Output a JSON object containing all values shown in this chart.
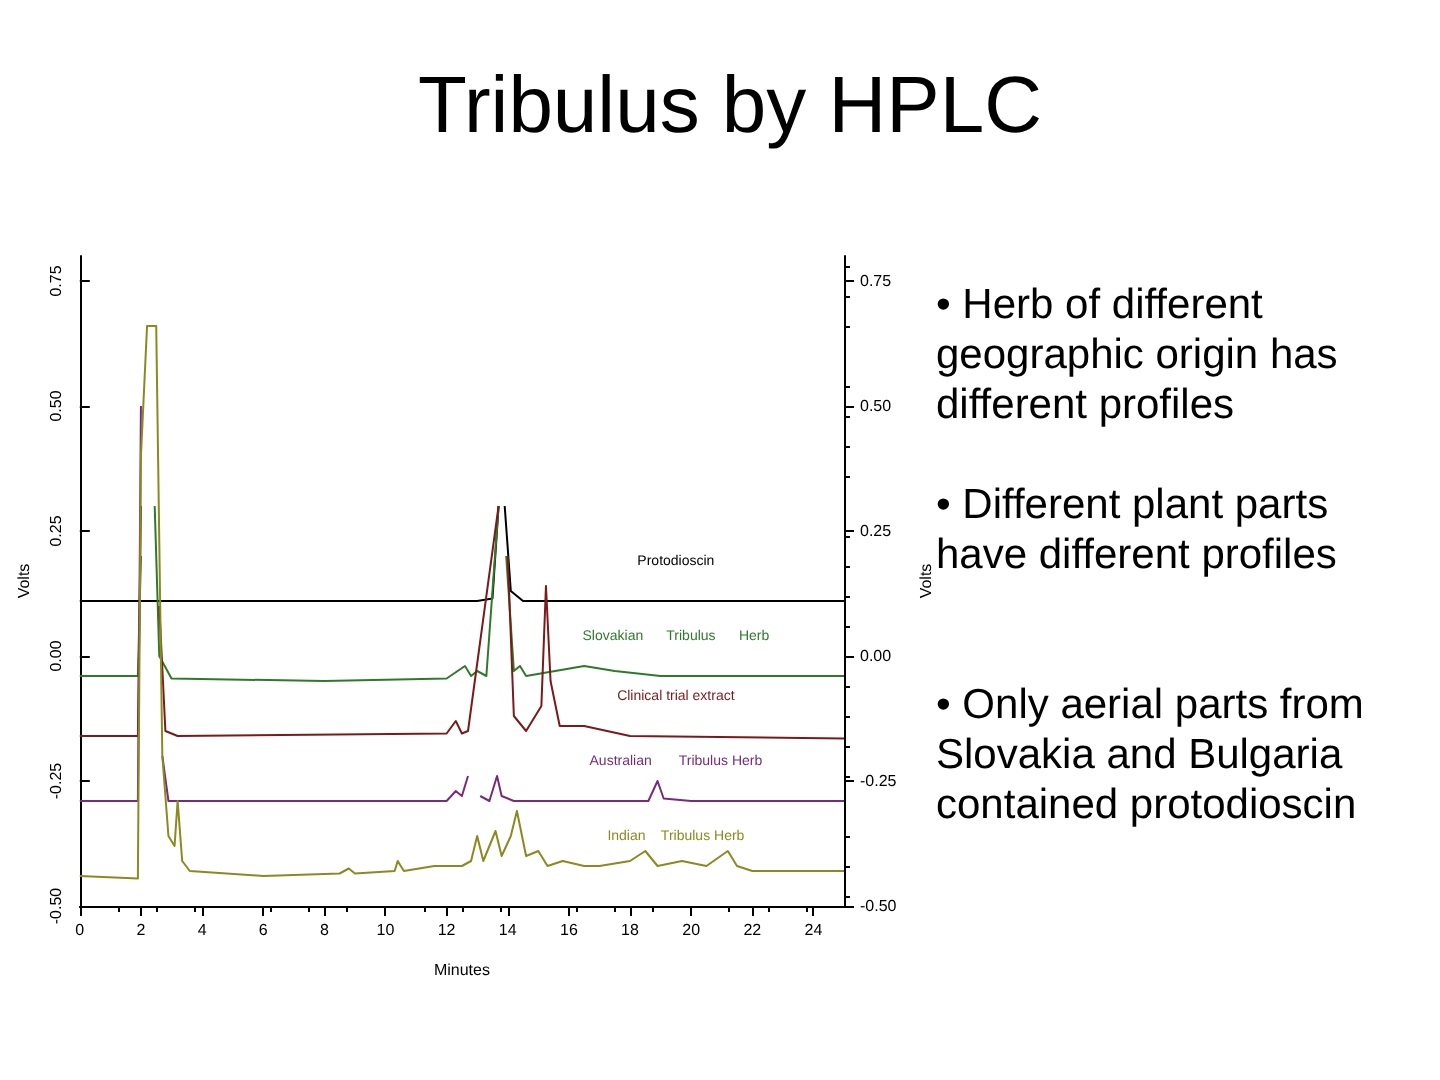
{
  "chart_data": {
    "type": "line",
    "title": "Tribulus by HPLC",
    "xlabel": "Minutes",
    "ylabel": "Volts",
    "y2label": "Volts",
    "xlim": [
      0,
      25
    ],
    "xticks": [
      0,
      2,
      4,
      6,
      8,
      10,
      12,
      14,
      16,
      18,
      20,
      22,
      24
    ],
    "ylim": [
      -0.5,
      0.8
    ],
    "yticks": [
      {
        "value": -0.5,
        "label": "-0.50"
      },
      {
        "value": -0.25,
        "label": "-0.25"
      },
      {
        "value": 0,
        "label": "0.00"
      },
      {
        "value": 0.25,
        "label": "0.25"
      },
      {
        "value": 0.5,
        "label": "0.50"
      },
      {
        "value": 0.75,
        "label": "0.75"
      }
    ],
    "y2lim": [
      -0.5,
      0.8
    ],
    "y2ticks": [
      {
        "value": -0.5,
        "label": "-0.50"
      },
      {
        "value": -0.25,
        "label": "-0.25"
      },
      {
        "value": 0,
        "label": "0.00"
      },
      {
        "value": 0.25,
        "label": "0.25"
      },
      {
        "value": 0.5,
        "label": "0.50"
      },
      {
        "value": 0.75,
        "label": "0.75"
      }
    ],
    "grid": false,
    "legend": false,
    "marker": "none",
    "line_style": "solid",
    "series": [
      {
        "name": "Protodioscin",
        "color": "#000000",
        "x": [
          0,
          2,
          6,
          10,
          12,
          13,
          13.5,
          13.7,
          13.8,
          13.9,
          14.1,
          14.5,
          16,
          20,
          25
        ],
        "values": [
          0.11,
          0.11,
          0.11,
          0.11,
          0.11,
          0.11,
          0.115,
          0.3,
          null,
          0.3,
          0.13,
          0.11,
          0.11,
          0.11,
          0.11
        ]
      },
      {
        "name": "Slovakian      Tribulus      Herb",
        "color": "#2f7a2a",
        "x": [
          0,
          1.9,
          2.0,
          2.15,
          2.3,
          2.45,
          2.6,
          3,
          8,
          12,
          12.6,
          12.8,
          13.0,
          13.3,
          13.7,
          13.8,
          13.95,
          14.2,
          14.4,
          14.6,
          16.5,
          17.5,
          19,
          25
        ],
        "values": [
          -0.04,
          -0.04,
          0.2,
          null,
          null,
          0.3,
          0.0,
          -0.045,
          -0.05,
          -0.045,
          -0.02,
          -0.04,
          -0.03,
          -0.04,
          0.3,
          null,
          0.2,
          -0.03,
          -0.02,
          -0.04,
          -0.02,
          -0.03,
          -0.04,
          -0.04
        ]
      },
      {
        "name": "Clinical trial extract",
        "color": "#7a1a1a",
        "x": [
          0,
          1.9,
          2.0,
          2.1,
          2.4,
          2.6,
          2.8,
          3.2,
          12,
          12.3,
          12.5,
          12.7,
          13.7,
          13.85,
          14.0,
          14.2,
          14.6,
          15.1,
          15.25,
          15.4,
          15.7,
          16.5,
          18,
          25
        ],
        "values": [
          -0.16,
          -0.16,
          0.3,
          null,
          null,
          0.1,
          -0.15,
          -0.16,
          -0.155,
          -0.13,
          -0.155,
          -0.15,
          0.3,
          null,
          0.2,
          -0.12,
          -0.15,
          -0.1,
          0.14,
          -0.05,
          -0.14,
          -0.14,
          -0.16,
          -0.165
        ]
      },
      {
        "name": "Australian       Tribulus Herb",
        "color": "#7a2a7a",
        "x": [
          0,
          1.9,
          2.0,
          2.2,
          2.5,
          2.7,
          2.9,
          12,
          12.3,
          12.5,
          12.7,
          12.8,
          12.95,
          13.1,
          13.4,
          13.65,
          13.8,
          14.2,
          18.6,
          18.9,
          19.1,
          20,
          25
        ],
        "values": [
          -0.29,
          -0.29,
          0.5,
          null,
          null,
          -0.2,
          -0.29,
          -0.29,
          -0.27,
          -0.28,
          -0.24,
          null,
          null,
          -0.28,
          -0.29,
          -0.24,
          -0.28,
          -0.29,
          -0.29,
          -0.25,
          -0.285,
          -0.29,
          -0.29
        ]
      },
      {
        "name": "Indian    Tribulus Herb",
        "color": "#8a8a20",
        "x": [
          0,
          1.9,
          2.0,
          2.2,
          2.5,
          2.7,
          2.9,
          3.1,
          3.2,
          3.35,
          3.6,
          6,
          8.5,
          8.8,
          9,
          10.3,
          10.4,
          10.6,
          11.6,
          12.5,
          12.8,
          13.0,
          13.2,
          13.6,
          13.8,
          14.1,
          14.3,
          14.6,
          15.0,
          15.3,
          15.8,
          16.5,
          17,
          18.0,
          18.5,
          18.9,
          19.7,
          20.5,
          21.2,
          21.5,
          22,
          25
        ],
        "values": [
          -0.44,
          -0.445,
          0.4,
          0.66,
          0.66,
          -0.2,
          -0.36,
          -0.38,
          -0.29,
          -0.41,
          -0.43,
          -0.44,
          -0.435,
          -0.425,
          -0.435,
          -0.43,
          -0.41,
          -0.43,
          -0.42,
          -0.42,
          -0.41,
          -0.36,
          -0.41,
          -0.35,
          -0.4,
          -0.36,
          -0.31,
          -0.4,
          -0.39,
          -0.42,
          -0.41,
          -0.42,
          -0.42,
          -0.41,
          -0.39,
          -0.42,
          -0.41,
          -0.42,
          -0.39,
          -0.42,
          -0.43,
          -0.43
        ]
      }
    ],
    "annotations": [
      "• Herb of different geographic origin has different profiles",
      "• Different plant parts have different profiles",
      "• Only aerial parts from Slovakia and Bulgaria contained protodioscin"
    ]
  }
}
